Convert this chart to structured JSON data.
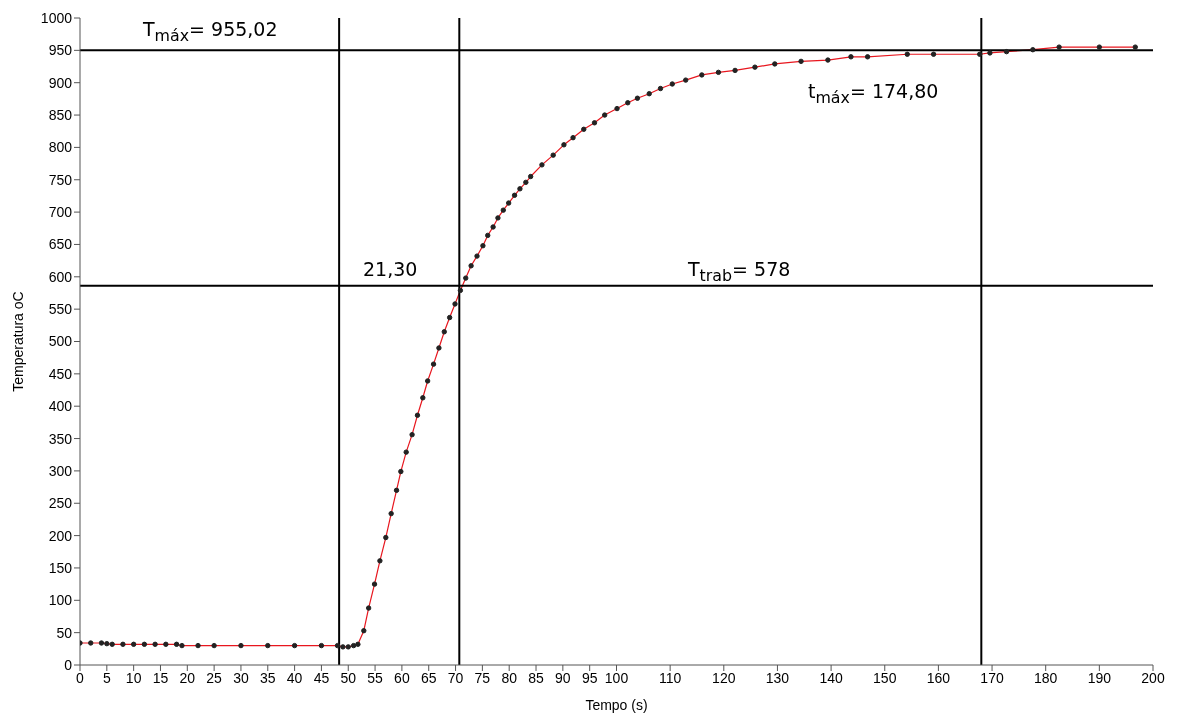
{
  "chart_data": {
    "type": "line",
    "xlabel": "Tempo (s)",
    "ylabel": "Temperatura oC",
    "xlim": [
      0,
      200
    ],
    "ylim": [
      0,
      1000
    ],
    "xticks": [
      0,
      5,
      10,
      15,
      20,
      25,
      30,
      35,
      40,
      45,
      50,
      55,
      60,
      65,
      70,
      75,
      80,
      85,
      90,
      95,
      100,
      110,
      120,
      130,
      140,
      150,
      160,
      170,
      180,
      190,
      200
    ],
    "yticks": [
      0,
      50,
      100,
      150,
      200,
      250,
      300,
      350,
      400,
      450,
      500,
      550,
      600,
      650,
      700,
      750,
      800,
      850,
      900,
      950,
      1000
    ],
    "marker": "circle",
    "line_style": "solid",
    "series": [
      {
        "color": "#e8161e",
        "x": [
          0,
          2,
          4,
          5,
          6,
          8,
          10,
          12,
          14,
          16,
          18,
          19,
          22,
          25,
          30,
          35,
          40,
          45,
          48,
          49,
          50,
          51,
          51.8,
          52.9,
          53.8,
          54.9,
          55.9,
          57,
          58,
          59,
          59.8,
          60.8,
          61.9,
          62.9,
          63.9,
          64.8,
          65.9,
          66.9,
          67.9,
          68.9,
          69.9,
          70.9,
          71.9,
          72.9,
          74,
          75.1,
          76,
          77,
          77.9,
          78.9,
          79.9,
          81,
          82,
          83.1,
          84,
          86.1,
          88.2,
          90.2,
          91.9,
          93.9,
          95.9,
          97.8,
          100.1,
          102.1,
          103.9,
          106.1,
          108.2,
          110.4,
          112.9,
          115.9,
          119,
          122.1,
          125.8,
          129.5,
          134.4,
          139.4,
          143.7,
          146.8,
          154.2,
          159.1,
          167.7,
          169.6,
          172.7,
          177.6,
          182.5,
          190,
          196.7
        ],
        "values": [
          34,
          34,
          34,
          33,
          32,
          32,
          32,
          32,
          32,
          32,
          32,
          30,
          30,
          30,
          30,
          30,
          30,
          30,
          30,
          28,
          28,
          30,
          32,
          53,
          88,
          125,
          161,
          197,
          234,
          270,
          299,
          329,
          356,
          386,
          413,
          439,
          465,
          490,
          515,
          537,
          558,
          579,
          598,
          617,
          632,
          648,
          664,
          677,
          691,
          703,
          714,
          726,
          736,
          746,
          755,
          773,
          788,
          804,
          815,
          828,
          838,
          850,
          860,
          869,
          876,
          883,
          891,
          898,
          904,
          912,
          916,
          919,
          924,
          929,
          933,
          935,
          940,
          940,
          944,
          944,
          944,
          946,
          948,
          951,
          955,
          955,
          955
        ]
      }
    ],
    "ref_lines": [
      {
        "axis": "y",
        "value": 950,
        "color": "#000000"
      },
      {
        "axis": "y",
        "value": 586,
        "color": "#000000"
      },
      {
        "axis": "x",
        "value": 48.3,
        "color": "#000000"
      },
      {
        "axis": "x",
        "value": 70.7,
        "color": "#000000"
      },
      {
        "axis": "x",
        "value": 168,
        "color": "#000000"
      }
    ],
    "annotations": [
      "T$_{máx}$= 955,02",
      "t$_{máx}$= 174,80",
      "21,30",
      "T$_{trab}$= 578"
    ]
  }
}
